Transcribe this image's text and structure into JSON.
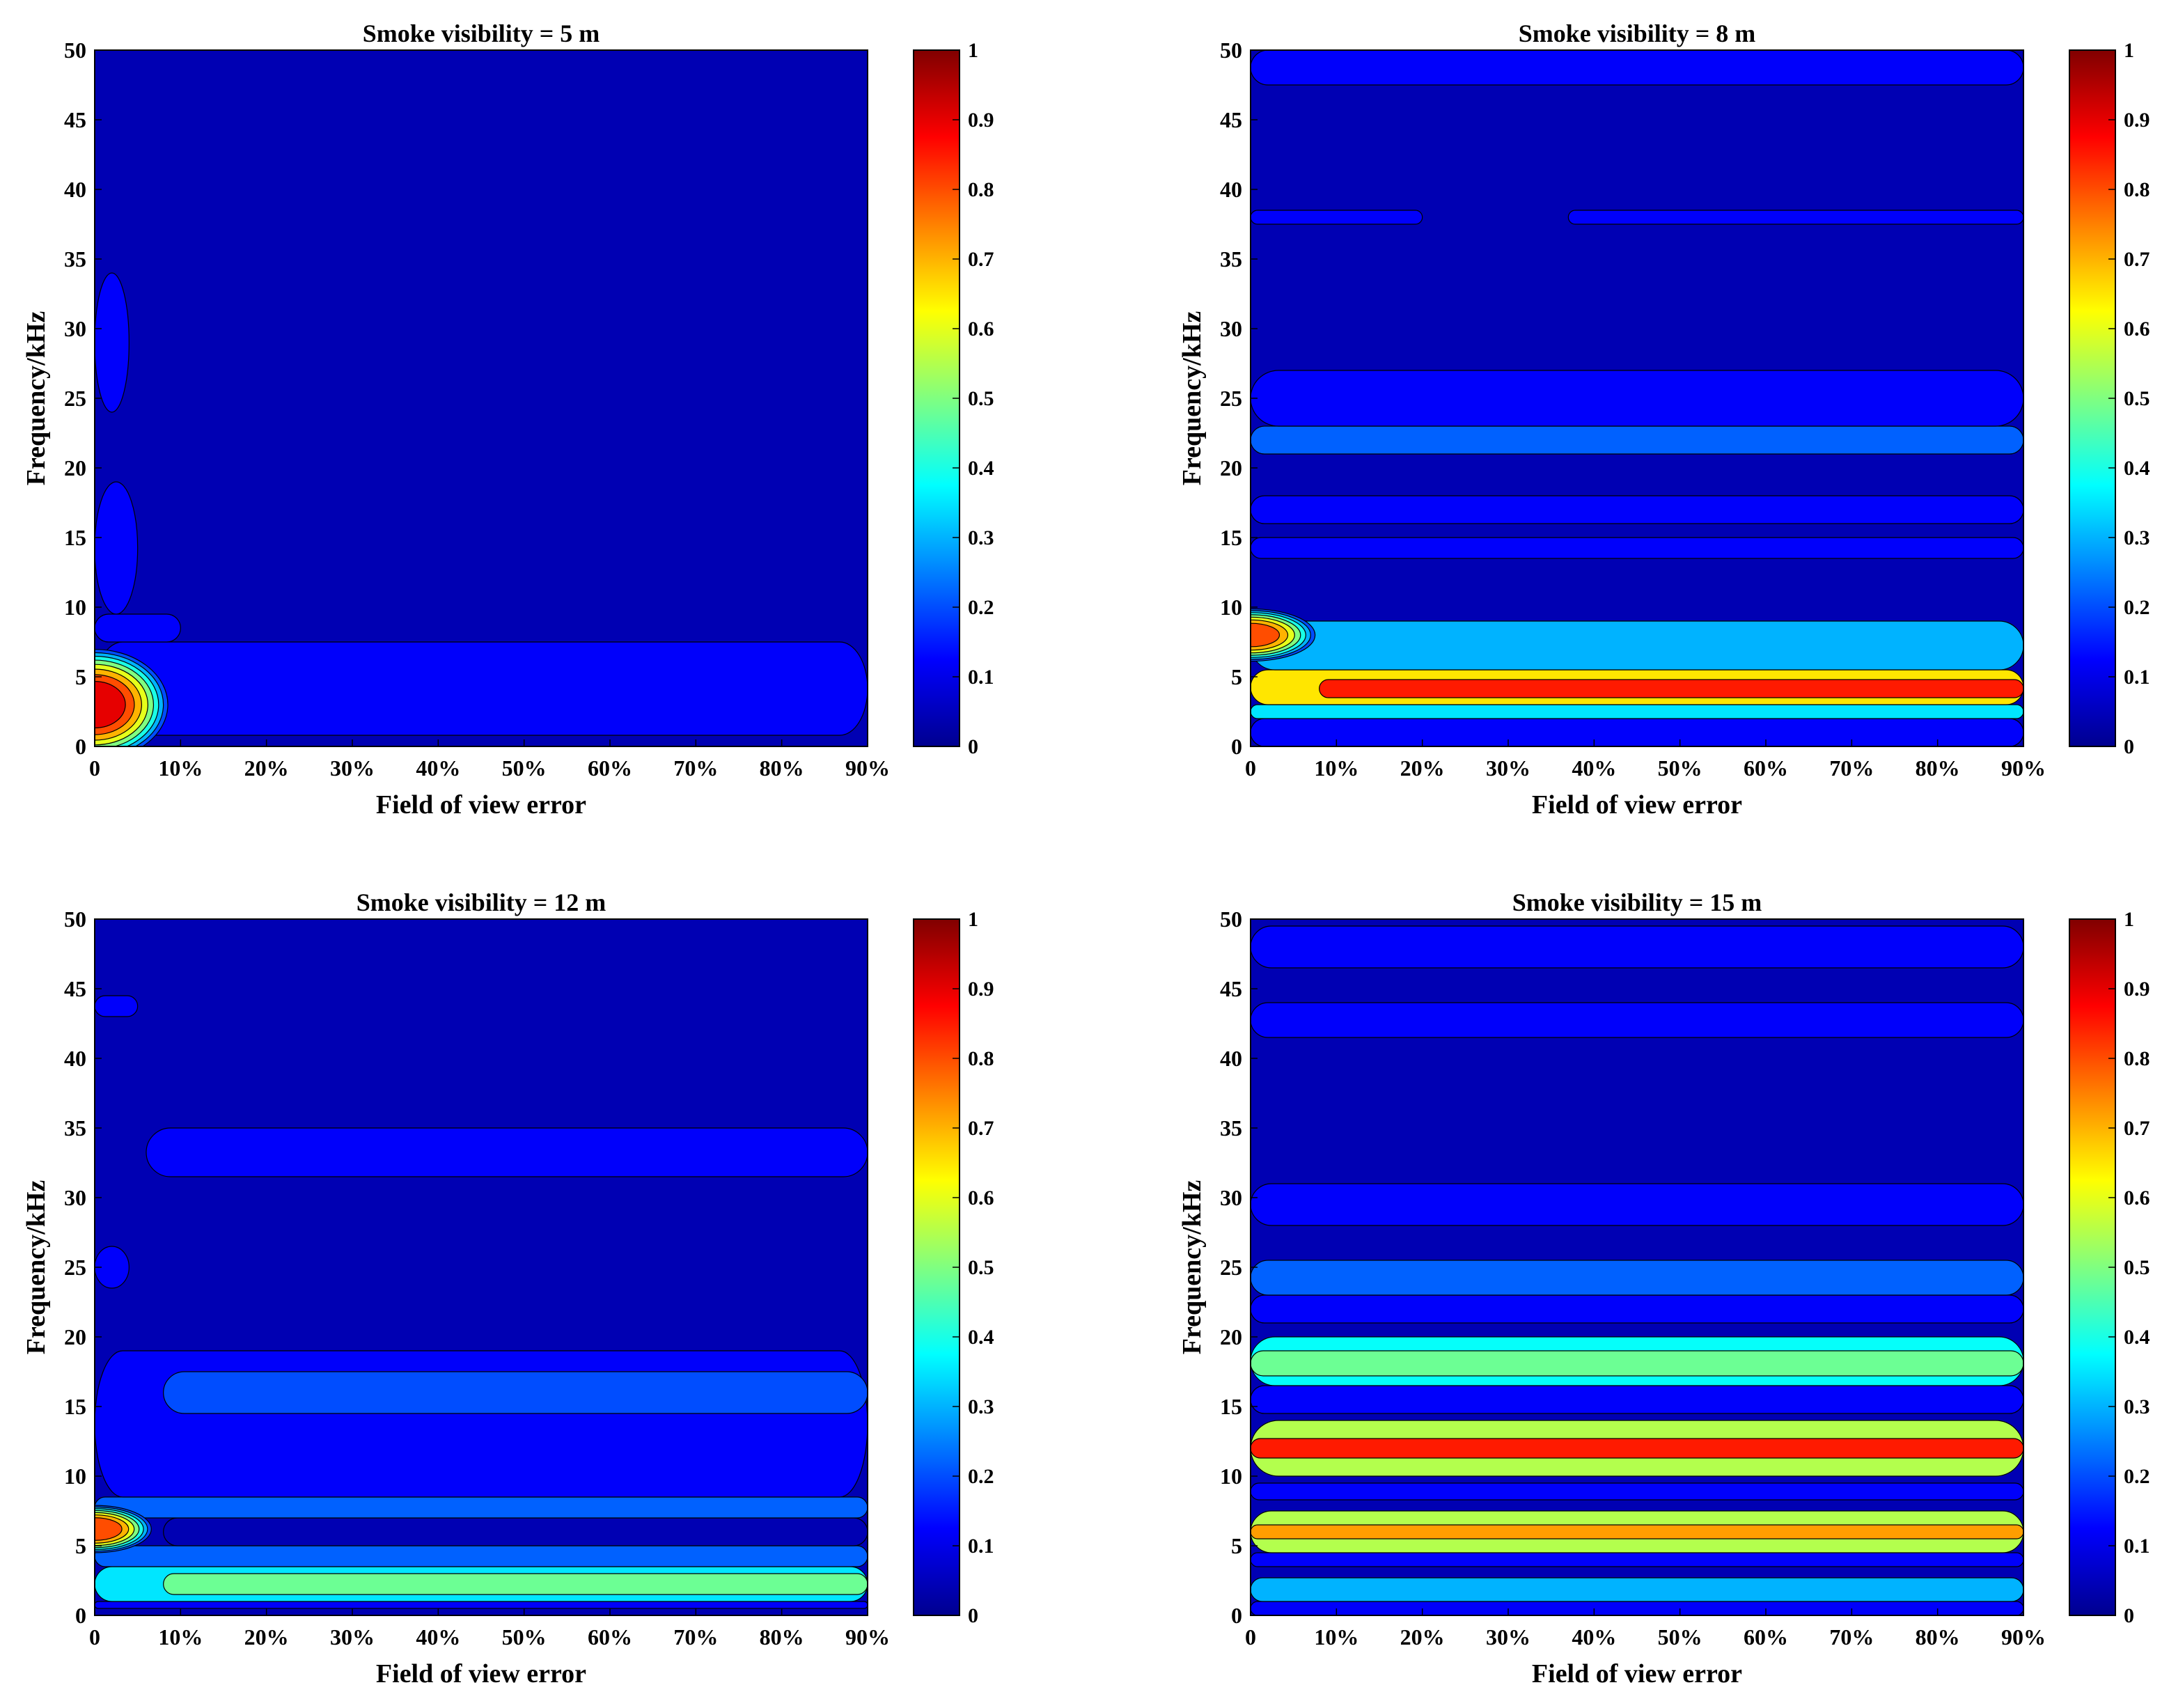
{
  "colormap": [
    "#00008f",
    "#0000ff",
    "#0080ff",
    "#00ffff",
    "#80ff80",
    "#ffff00",
    "#ff8000",
    "#ff0000",
    "#800000"
  ],
  "chart_data": [
    {
      "type": "heatmap",
      "title": "Smoke visibility = 5 m",
      "xlabel": "Field of view error",
      "ylabel": "Frequency/kHz",
      "x_tick_labels": [
        "0",
        "10%",
        "20%",
        "30%",
        "40%",
        "50%",
        "60%",
        "70%",
        "80%",
        "90%"
      ],
      "xlim": [
        0,
        90
      ],
      "ylim": [
        0,
        50
      ],
      "y_ticks": [
        0,
        5,
        10,
        15,
        20,
        25,
        30,
        35,
        40,
        45,
        50
      ],
      "colorbar": {
        "range": [
          0,
          1
        ],
        "ticks": [
          "0",
          "0.1",
          "0.2",
          "0.3",
          "0.4",
          "0.5",
          "0.6",
          "0.7",
          "0.8",
          "0.9",
          "1"
        ]
      },
      "background": 0.04,
      "bands": [
        {
          "y0": 0.8,
          "y1": 7.5,
          "x0": 0,
          "x1": 90,
          "value": 0.12
        },
        {
          "y0": 7.5,
          "y1": 9.5,
          "x0": 0,
          "x1": 10,
          "value": 0.12
        },
        {
          "y0": 9.5,
          "y1": 19.0,
          "x0": 0,
          "x1": 5,
          "value": 0.12
        },
        {
          "y0": 24.0,
          "y1": 34.0,
          "x0": 0,
          "x1": 4,
          "value": 0.12
        }
      ],
      "peaks": [
        {
          "x": 0,
          "y": 3.0,
          "value": 0.95,
          "rx": 9,
          "ry": 4.2
        }
      ]
    },
    {
      "type": "heatmap",
      "title": "Smoke visibility = 8 m",
      "xlabel": "Field of view error",
      "ylabel": "Frequency/kHz",
      "x_tick_labels": [
        "0",
        "10%",
        "20%",
        "30%",
        "40%",
        "50%",
        "60%",
        "70%",
        "80%",
        "90%"
      ],
      "xlim": [
        0,
        90
      ],
      "ylim": [
        0,
        50
      ],
      "y_ticks": [
        0,
        5,
        10,
        15,
        20,
        25,
        30,
        35,
        40,
        45,
        50
      ],
      "colorbar": {
        "range": [
          0,
          1
        ],
        "ticks": [
          "0",
          "0.1",
          "0.2",
          "0.3",
          "0.4",
          "0.5",
          "0.6",
          "0.7",
          "0.8",
          "0.9",
          "1"
        ]
      },
      "background": 0.04,
      "bands": [
        {
          "y0": 0.0,
          "y1": 2.0,
          "x0": 0,
          "x1": 90,
          "value": 0.12
        },
        {
          "y0": 2.0,
          "y1": 3.0,
          "x0": 0,
          "x1": 90,
          "value": 0.35
        },
        {
          "y0": 3.0,
          "y1": 5.5,
          "x0": 0,
          "x1": 90,
          "value": 0.65
        },
        {
          "y0": 3.5,
          "y1": 4.8,
          "x0": 8,
          "x1": 90,
          "value": 0.85
        },
        {
          "y0": 5.5,
          "y1": 9.0,
          "x0": 0,
          "x1": 90,
          "value": 0.3
        },
        {
          "y0": 13.5,
          "y1": 15.0,
          "x0": 0,
          "x1": 90,
          "value": 0.12
        },
        {
          "y0": 16.0,
          "y1": 18.0,
          "x0": 0,
          "x1": 90,
          "value": 0.12
        },
        {
          "y0": 21.0,
          "y1": 23.0,
          "x0": 0,
          "x1": 90,
          "value": 0.22
        },
        {
          "y0": 23.0,
          "y1": 27.0,
          "x0": 0,
          "x1": 90,
          "value": 0.12
        },
        {
          "y0": 37.5,
          "y1": 38.5,
          "x0": 0,
          "x1": 20,
          "value": 0.12
        },
        {
          "y0": 37.5,
          "y1": 38.5,
          "x0": 37,
          "x1": 90,
          "value": 0.12
        },
        {
          "y0": 47.5,
          "y1": 50.0,
          "x0": 0,
          "x1": 90,
          "value": 0.12
        }
      ],
      "peaks": [
        {
          "x": 0,
          "y": 8.0,
          "value": 0.85,
          "rx": 8,
          "ry": 2.0
        }
      ]
    },
    {
      "type": "heatmap",
      "title": "Smoke visibility = 12 m",
      "xlabel": "Field of view error",
      "ylabel": "Frequency/kHz",
      "x_tick_labels": [
        "0",
        "10%",
        "20%",
        "30%",
        "40%",
        "50%",
        "60%",
        "70%",
        "80%",
        "90%"
      ],
      "xlim": [
        0,
        90
      ],
      "ylim": [
        0,
        50
      ],
      "y_ticks": [
        0,
        5,
        10,
        15,
        20,
        25,
        30,
        35,
        40,
        45,
        50
      ],
      "colorbar": {
        "range": [
          0,
          1
        ],
        "ticks": [
          "0",
          "0.1",
          "0.2",
          "0.3",
          "0.4",
          "0.5",
          "0.6",
          "0.7",
          "0.8",
          "0.9",
          "1"
        ]
      },
      "background": 0.04,
      "bands": [
        {
          "y0": 0.5,
          "y1": 1.0,
          "x0": 0,
          "x1": 90,
          "value": 0.12
        },
        {
          "y0": 1.0,
          "y1": 3.5,
          "x0": 0,
          "x1": 90,
          "value": 0.35
        },
        {
          "y0": 1.5,
          "y1": 3.0,
          "x0": 8,
          "x1": 90,
          "value": 0.48
        },
        {
          "y0": 3.5,
          "y1": 5.0,
          "x0": 0,
          "x1": 90,
          "value": 0.22
        },
        {
          "y0": 5.0,
          "y1": 7.0,
          "x0": 8,
          "x1": 90,
          "value": 0.04
        },
        {
          "y0": 7.0,
          "y1": 8.5,
          "x0": 0,
          "x1": 90,
          "value": 0.22
        },
        {
          "y0": 8.5,
          "y1": 19.0,
          "x0": 0,
          "x1": 90,
          "value": 0.12
        },
        {
          "y0": 14.5,
          "y1": 17.5,
          "x0": 8,
          "x1": 90,
          "value": 0.2
        },
        {
          "y0": 31.5,
          "y1": 35.0,
          "x0": 6,
          "x1": 90,
          "value": 0.12
        },
        {
          "y0": 23.5,
          "y1": 26.5,
          "x0": 0,
          "x1": 4,
          "value": 0.12
        },
        {
          "y0": 43.0,
          "y1": 44.5,
          "x0": 0,
          "x1": 5,
          "value": 0.12
        }
      ],
      "peaks": [
        {
          "x": 0,
          "y": 6.2,
          "value": 0.88,
          "rx": 7,
          "ry": 1.8
        }
      ]
    },
    {
      "type": "heatmap",
      "title": "Smoke visibility = 15 m",
      "xlabel": "Field of view error",
      "ylabel": "Frequency/kHz",
      "x_tick_labels": [
        "0",
        "10%",
        "20%",
        "30%",
        "40%",
        "50%",
        "60%",
        "70%",
        "80%",
        "90%"
      ],
      "xlim": [
        0,
        90
      ],
      "ylim": [
        0,
        50
      ],
      "y_ticks": [
        0,
        5,
        10,
        15,
        20,
        25,
        30,
        35,
        40,
        45,
        50
      ],
      "colorbar": {
        "range": [
          0,
          1
        ],
        "ticks": [
          "0",
          "0.1",
          "0.2",
          "0.3",
          "0.4",
          "0.5",
          "0.6",
          "0.7",
          "0.8",
          "0.9",
          "1"
        ]
      },
      "background": 0.04,
      "bands": [
        {
          "y0": 0.0,
          "y1": 1.0,
          "x0": 0,
          "x1": 90,
          "value": 0.12
        },
        {
          "y0": 1.0,
          "y1": 2.7,
          "x0": 0,
          "x1": 90,
          "value": 0.3
        },
        {
          "y0": 3.5,
          "y1": 4.5,
          "x0": 0,
          "x1": 90,
          "value": 0.12
        },
        {
          "y0": 4.5,
          "y1": 7.5,
          "x0": 0,
          "x1": 90,
          "value": 0.55
        },
        {
          "y0": 5.5,
          "y1": 6.5,
          "x0": 0,
          "x1": 90,
          "value": 0.72
        },
        {
          "y0": 8.3,
          "y1": 9.5,
          "x0": 0,
          "x1": 90,
          "value": 0.12
        },
        {
          "y0": 10.0,
          "y1": 14.0,
          "x0": 0,
          "x1": 90,
          "value": 0.55
        },
        {
          "y0": 11.3,
          "y1": 12.7,
          "x0": 0,
          "x1": 90,
          "value": 0.85
        },
        {
          "y0": 14.5,
          "y1": 16.5,
          "x0": 0,
          "x1": 90,
          "value": 0.12
        },
        {
          "y0": 16.5,
          "y1": 20.0,
          "x0": 0,
          "x1": 90,
          "value": 0.38
        },
        {
          "y0": 17.2,
          "y1": 19.0,
          "x0": 0,
          "x1": 90,
          "value": 0.48
        },
        {
          "y0": 21.0,
          "y1": 23.0,
          "x0": 0,
          "x1": 90,
          "value": 0.12
        },
        {
          "y0": 23.0,
          "y1": 25.5,
          "x0": 0,
          "x1": 90,
          "value": 0.22
        },
        {
          "y0": 28.0,
          "y1": 31.0,
          "x0": 0,
          "x1": 90,
          "value": 0.12
        },
        {
          "y0": 41.5,
          "y1": 44.0,
          "x0": 0,
          "x1": 90,
          "value": 0.12
        },
        {
          "y0": 46.5,
          "y1": 49.5,
          "x0": 0,
          "x1": 90,
          "value": 0.12
        }
      ],
      "peaks": []
    }
  ]
}
